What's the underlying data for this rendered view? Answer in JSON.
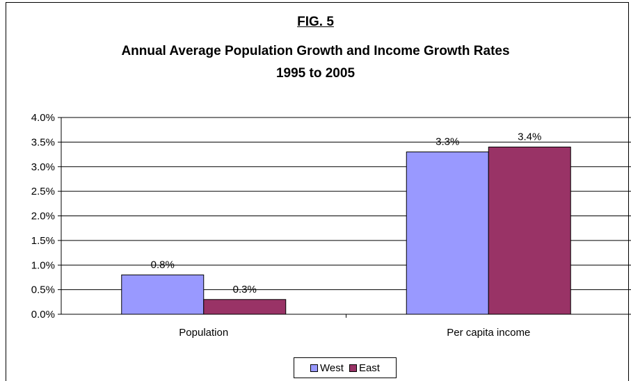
{
  "chart_data": {
    "type": "bar",
    "fig_label": "FIG. 5",
    "title": "Annual Average Population Growth and Income Growth Rates",
    "subtitle": "1995 to 2005",
    "categories": [
      "Population",
      "Per capita income"
    ],
    "series": [
      {
        "name": "West",
        "values": [
          0.8,
          3.3
        ],
        "labels": [
          "0.8%",
          "3.3%"
        ],
        "color": "#9999ff"
      },
      {
        "name": "East",
        "values": [
          0.3,
          3.4
        ],
        "labels": [
          "0.3%",
          "3.4%"
        ],
        "color": "#993366"
      }
    ],
    "ylim": [
      0,
      4.0
    ],
    "yticks": [
      "0.0%",
      "0.5%",
      "1.0%",
      "1.5%",
      "2.0%",
      "2.5%",
      "3.0%",
      "3.5%",
      "4.0%"
    ],
    "grid": true,
    "legend": "bottom-center"
  }
}
